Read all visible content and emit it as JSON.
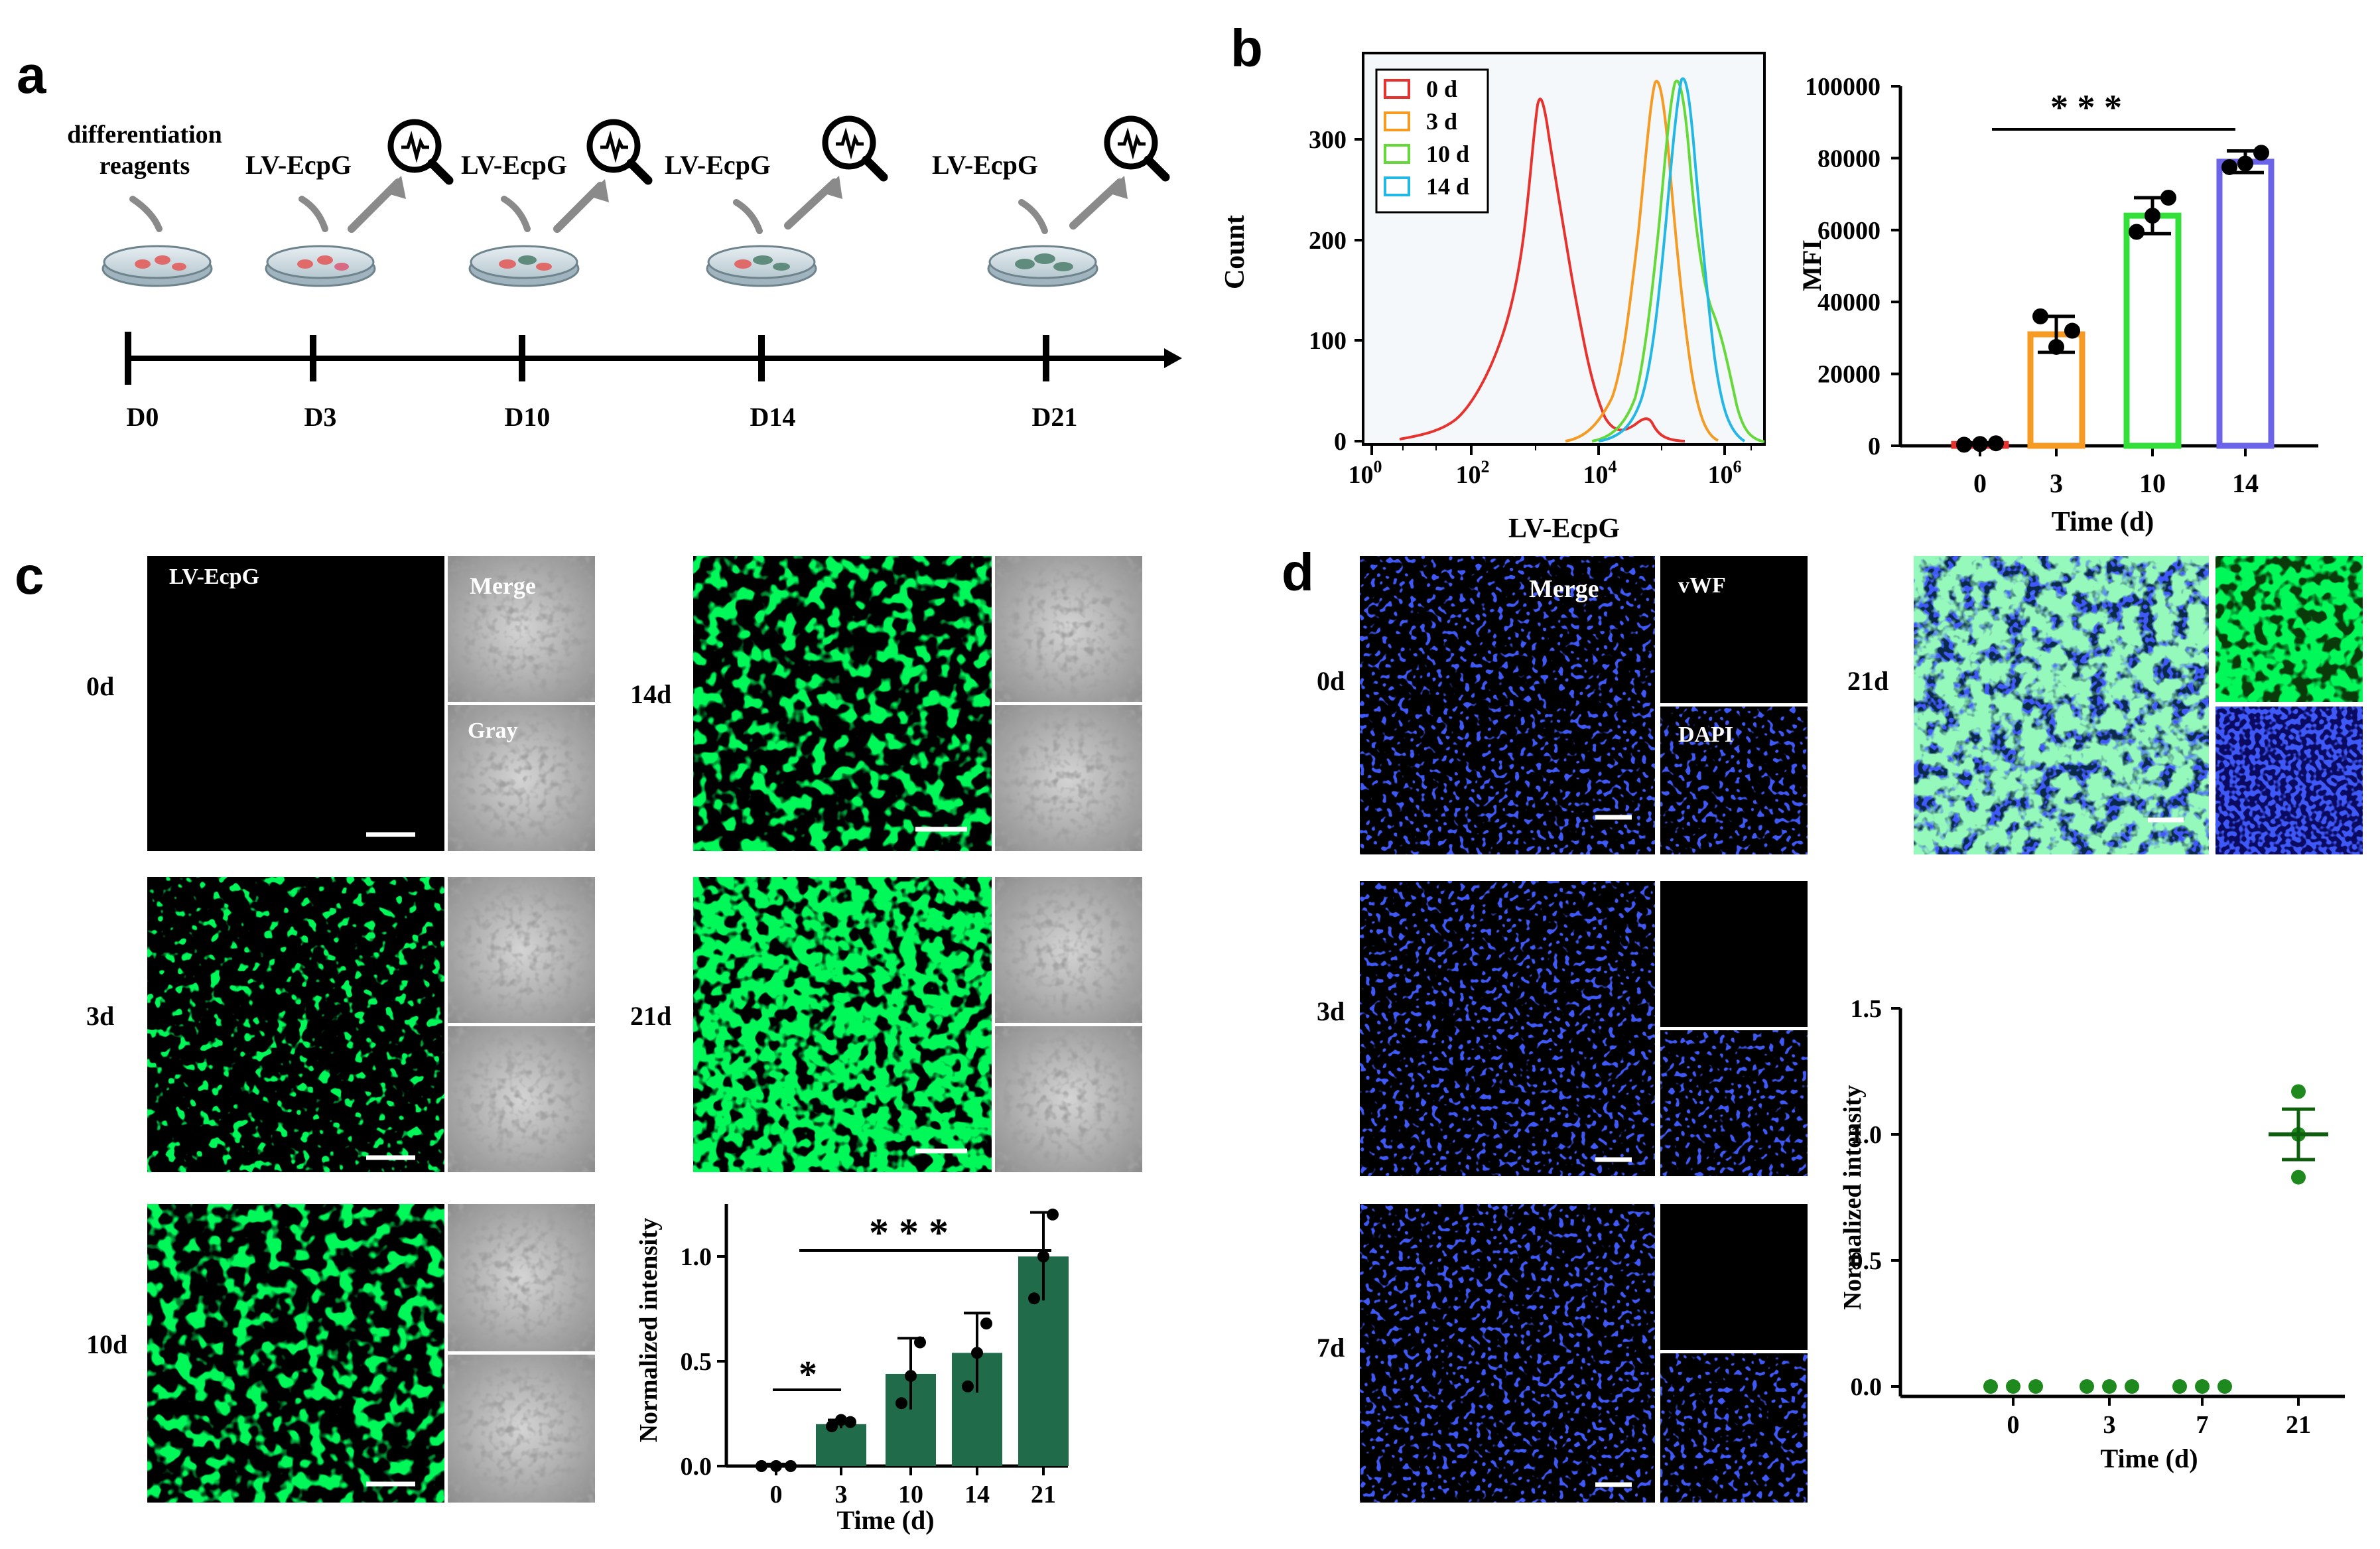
{
  "panels": {
    "a": {
      "letter": "a",
      "reagent_label_line1": "differentiation",
      "reagent_label_line2": "reagents",
      "treatment_label": "LV-EcpG",
      "timepoints": [
        "D0",
        "D3",
        "D10",
        "D14",
        "D21"
      ]
    },
    "b": {
      "letter": "b",
      "histogram": {
        "ylabel": "Count",
        "xlabel": "LV-EcpG",
        "yticks": [
          "0",
          "100",
          "200",
          "300"
        ],
        "xticks_base": [
          "10",
          "10",
          "10",
          "10"
        ],
        "xticks_exp": [
          "0",
          "2",
          "4",
          "6"
        ],
        "legend": [
          {
            "label": "0 d",
            "color": "#e8322e"
          },
          {
            "label": "3 d",
            "color": "#f59a23"
          },
          {
            "label": "10 d",
            "color": "#66d93a"
          },
          {
            "label": "14 d",
            "color": "#23b7e5"
          }
        ]
      }
    },
    "c": {
      "letter": "c",
      "channel_label": "LV-EcpG",
      "merge_label": "Merge",
      "gray_label": "Gray",
      "day_labels": [
        "0d",
        "3d",
        "10d",
        "14d",
        "21d"
      ]
    },
    "d": {
      "letter": "d",
      "merge_label": "Merge",
      "vwf_label": "vWF",
      "dapi_label": "DAPI",
      "day_labels": [
        "0d",
        "3d",
        "7d",
        "21d"
      ]
    }
  },
  "chart_data": [
    {
      "id": "b-mfi",
      "type": "bar",
      "title": "",
      "xlabel": "Time (d)",
      "ylabel": "MFI",
      "categories": [
        "0",
        "3",
        "10",
        "14"
      ],
      "values": [
        500,
        31000,
        64000,
        79000
      ],
      "errors": [
        300,
        5000,
        5000,
        3000
      ],
      "points": [
        [
          300,
          500,
          700
        ],
        [
          36000,
          27500,
          32000
        ],
        [
          59500,
          64000,
          69000
        ],
        [
          77500,
          78500,
          81500
        ]
      ],
      "bar_colors": [
        "#e8322e",
        "#f59a23",
        "#33e03a",
        "#6b63e8"
      ],
      "ylim": [
        0,
        100000
      ],
      "yticks": [
        0,
        20000,
        40000,
        60000,
        80000,
        100000
      ],
      "significance": "* * *"
    },
    {
      "id": "c-intensity",
      "type": "bar",
      "title": "",
      "xlabel": "Time (d)",
      "ylabel": "Normalized intensity",
      "categories": [
        "0",
        "3",
        "10",
        "14",
        "21"
      ],
      "values": [
        0.0,
        0.2,
        0.44,
        0.54,
        1.0
      ],
      "errors": [
        0.01,
        0.02,
        0.17,
        0.19,
        0.21
      ],
      "points": [
        [
          0.0,
          0.0,
          0.0
        ],
        [
          0.19,
          0.22,
          0.21
        ],
        [
          0.3,
          0.43,
          0.59
        ],
        [
          0.38,
          0.54,
          0.68
        ],
        [
          0.8,
          1.0,
          1.2
        ]
      ],
      "bar_color": "#1f6b4a",
      "ylim": [
        0,
        1.25
      ],
      "yticks": [
        0.0,
        0.5,
        1.0
      ],
      "ytick_labels": [
        "0.0",
        "0.5",
        "1.0"
      ],
      "significance": [
        {
          "label": "*",
          "from": "0",
          "to": "3"
        },
        {
          "label": "* * *",
          "from": "3",
          "to": "21"
        }
      ]
    },
    {
      "id": "d-intensity",
      "type": "scatter",
      "title": "",
      "xlabel": "Time (d)",
      "ylabel": "Normalized intensity",
      "categories": [
        "0",
        "3",
        "7",
        "21"
      ],
      "points": [
        [
          0,
          0,
          0
        ],
        [
          0,
          0,
          0
        ],
        [
          0,
          0,
          0
        ],
        [
          1.17,
          1.0,
          0.83
        ]
      ],
      "means": [
        0,
        0,
        0,
        1.0
      ],
      "sem": [
        0,
        0,
        0,
        0.1
      ],
      "color": "#1e8a1e",
      "ylim": [
        0,
        1.5
      ],
      "yticks": [
        0.0,
        0.5,
        1.0,
        1.5
      ],
      "ytick_labels": [
        "0.0",
        "0.5",
        "1.0",
        "1.5"
      ]
    }
  ]
}
